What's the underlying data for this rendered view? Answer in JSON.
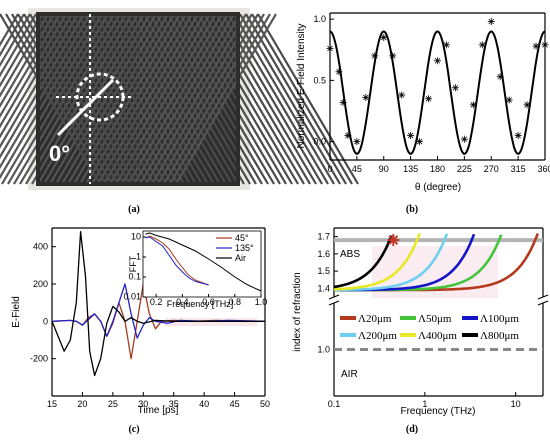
{
  "captions": [
    "(a)",
    "(b)",
    "(c)",
    "(d)"
  ],
  "photo": {
    "angle_label": "0°"
  },
  "chart_data": [
    {
      "id": "b",
      "type": "scatter",
      "xlabel": "θ (degree)",
      "ylabel": "Normalized E-Field Intensity",
      "xlim": [
        0,
        360
      ],
      "ylim": [
        -0.15,
        1.05
      ],
      "xticks": [
        0,
        45,
        90,
        135,
        180,
        225,
        270,
        315,
        360
      ],
      "yticks": [
        0.0,
        0.5,
        1.0
      ],
      "ytick_labels": [
        "0.0",
        "0.5",
        "1.0"
      ],
      "fit_curve": {
        "offset": 0.4,
        "amplitude": 0.5,
        "period": 90,
        "phase_deg": 0
      },
      "series": [
        {
          "marker": "asterisk",
          "x": [
            0,
            15,
            22,
            30,
            45,
            60,
            75,
            90,
            105,
            120,
            135,
            150,
            165,
            180,
            195,
            210,
            225,
            240,
            255,
            270,
            285,
            300,
            315,
            330,
            345,
            360
          ],
          "y": [
            0.76,
            0.57,
            0.32,
            0.05,
            0.0,
            0.36,
            0.7,
            0.85,
            0.7,
            0.38,
            0.05,
            0.0,
            0.35,
            0.66,
            0.79,
            0.44,
            0.02,
            0.3,
            0.79,
            0.98,
            0.53,
            0.34,
            0.05,
            0.3,
            0.78,
            0.79
          ]
        }
      ]
    },
    {
      "id": "c",
      "type": "line",
      "xlabel": "Time [ps]",
      "ylabel": "E-Field",
      "xlim": [
        15,
        50
      ],
      "ylim": [
        -400,
        500
      ],
      "xticks": [
        15,
        20,
        25,
        30,
        35,
        40,
        45,
        50
      ],
      "yticks": [
        -200,
        0,
        200,
        400
      ],
      "series": [
        {
          "name": "45°",
          "color": "#a63b1e",
          "x": [
            15,
            18,
            19,
            20,
            21,
            22,
            23,
            24,
            25,
            26,
            27,
            28,
            29,
            30,
            31,
            32,
            33,
            35,
            38,
            42,
            46,
            50
          ],
          "y": [
            0,
            5,
            0,
            -20,
            20,
            40,
            0,
            -80,
            -10,
            100,
            0,
            -200,
            0,
            200,
            40,
            -40,
            0,
            5,
            0,
            5,
            0,
            0
          ]
        },
        {
          "name": "135°",
          "color": "#2323c8",
          "x": [
            15,
            18,
            19,
            20,
            21,
            22,
            23,
            24,
            25,
            26,
            27,
            28,
            29,
            30,
            31,
            32,
            34,
            36,
            40,
            44,
            50
          ],
          "y": [
            0,
            5,
            0,
            -20,
            10,
            40,
            0,
            -80,
            0,
            100,
            200,
            40,
            -90,
            -20,
            20,
            0,
            -10,
            5,
            0,
            5,
            0
          ]
        },
        {
          "name": "Air",
          "color": "#000000",
          "x": [
            15,
            16,
            17,
            18,
            19,
            19.7,
            20.5,
            21.2,
            22,
            23,
            24,
            25,
            26,
            27,
            28,
            29,
            30,
            32,
            35,
            40,
            45,
            50
          ],
          "y": [
            0,
            -80,
            -160,
            -100,
            100,
            480,
            240,
            -160,
            -290,
            -200,
            -10,
            80,
            50,
            0,
            20,
            0,
            -10,
            5,
            0,
            0,
            0,
            0
          ]
        }
      ],
      "inset": {
        "type": "line",
        "xlabel": "Frequency [THz]",
        "ylabel": "FFT",
        "xlim": [
          0.1,
          1.0
        ],
        "ylim_log": [
          0.01,
          20
        ],
        "log_y": true,
        "xticks": [
          0.2,
          0.4,
          0.6,
          0.8,
          1.0
        ],
        "xtick_labels": [
          "0.2",
          "0.4",
          "0.6",
          "0.8",
          "1.0"
        ],
        "yticks": [
          0.01,
          0.1,
          1,
          10
        ],
        "ytick_labels": [
          "0.01",
          "0.1",
          "1",
          "10"
        ],
        "series": [
          {
            "name": "45°",
            "color": "#a63b1e",
            "x": [
              0.12,
              0.15,
              0.2,
              0.25,
              0.3,
              0.35,
              0.4,
              0.45,
              0.5,
              0.6
            ],
            "y": [
              9,
              11,
              8,
              5,
              2.5,
              0.8,
              0.3,
              0.12,
              0.07,
              0.04
            ]
          },
          {
            "name": "135°",
            "color": "#2323c8",
            "x": [
              0.12,
              0.15,
              0.2,
              0.25,
              0.3,
              0.35,
              0.4,
              0.45,
              0.5,
              0.6
            ],
            "y": [
              9,
              10,
              6,
              3.5,
              1.2,
              0.4,
              0.18,
              0.09,
              0.06,
              0.04
            ]
          },
          {
            "name": "Air",
            "color": "#000000",
            "x": [
              0.12,
              0.15,
              0.2,
              0.3,
              0.4,
              0.5,
              0.6,
              0.7,
              0.8,
              0.9,
              1.0
            ],
            "y": [
              14,
              16,
              12,
              8,
              4,
              2,
              0.8,
              0.3,
              0.1,
              0.04,
              0.02
            ]
          }
        ]
      }
    },
    {
      "id": "d",
      "type": "line",
      "xlabel": "Frequency (THz)",
      "ylabel": "index of refraction",
      "log_x": true,
      "xlim": [
        0.1,
        20
      ],
      "xticks": [
        0.1,
        1,
        10
      ],
      "xtick_labels": [
        "0.1",
        "1",
        "10"
      ],
      "yticks": [
        1.0,
        1.4,
        1.5,
        1.6,
        1.7
      ],
      "ytick_labels": [
        "1.0",
        "1.4",
        "1.5",
        "1.6",
        "1.7"
      ],
      "ylim_upper": [
        1.35,
        1.75
      ],
      "ylim_lower": [
        0.95,
        1.05
      ],
      "reference_lines": [
        {
          "label": "ABS",
          "y": 1.68,
          "color": "#b4b4b4",
          "style": "solid"
        },
        {
          "label": "AIR",
          "y": 1.0,
          "color": "#888888",
          "style": "dashed"
        }
      ],
      "marker": {
        "x": 0.45,
        "y": 1.68,
        "color": "#c0392b",
        "symbol": "asterisk"
      },
      "series": [
        {
          "name": "Λ20μm",
          "color": "#b5391f",
          "fc": 16
        },
        {
          "name": "Λ50μm",
          "color": "#43c43a",
          "fc": 6.4
        },
        {
          "name": "Λ100μm",
          "color": "#1414c8",
          "fc": 3.2
        },
        {
          "name": "Λ200μm",
          "color": "#6fcff0",
          "fc": 1.6
        },
        {
          "name": "Λ400μm",
          "color": "#e8e824",
          "fc": 0.8
        },
        {
          "name": "Λ800μm",
          "color": "#000000",
          "fc": 0.4
        }
      ]
    }
  ]
}
